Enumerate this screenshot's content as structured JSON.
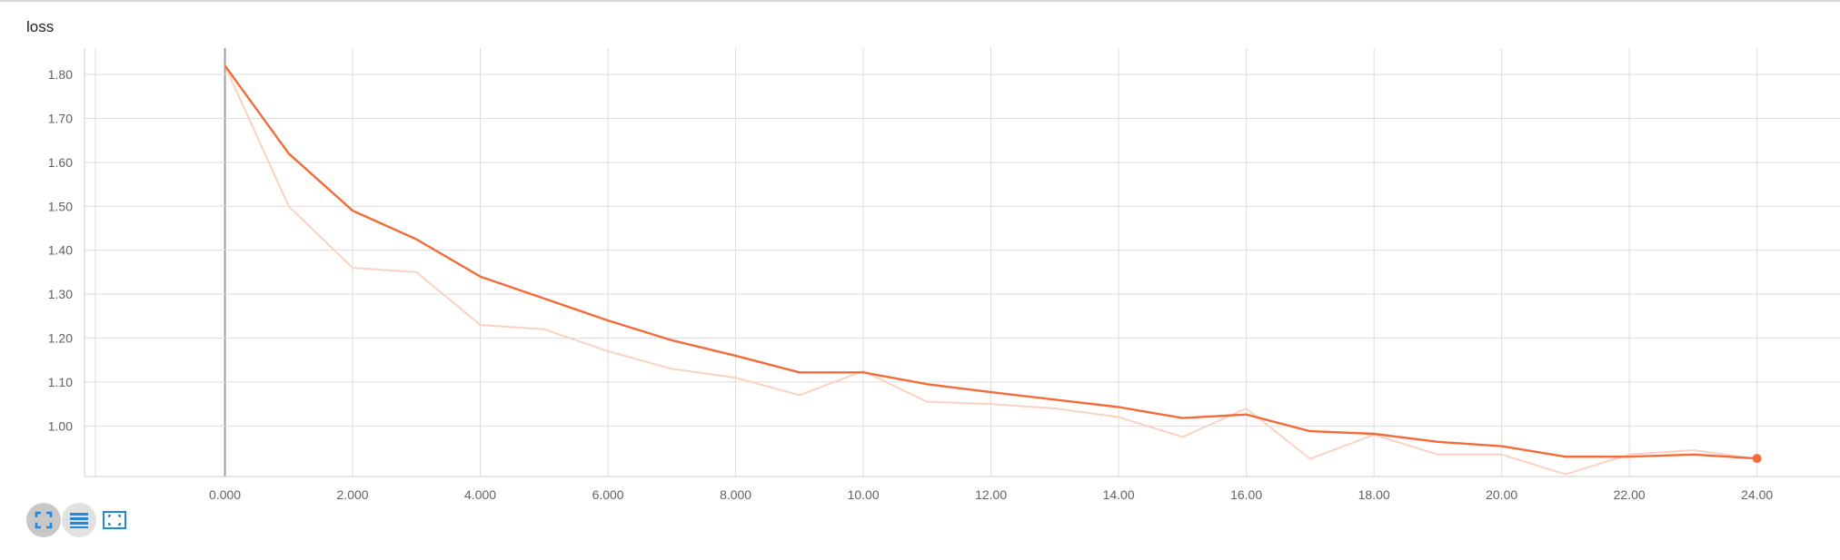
{
  "card": {
    "title": "loss"
  },
  "toolbar": {
    "buttons": [
      {
        "name": "fullscreen",
        "icon": "fullscreen-icon"
      },
      {
        "name": "toggle-y-axis-log",
        "icon": "list-icon"
      },
      {
        "name": "fit-domain",
        "icon": "fit-domain-icon"
      }
    ]
  },
  "colors": {
    "smoothed": "#f26b38",
    "raw": "#f9d2c2",
    "grid": "#dcdcdc",
    "zero_line": "#9e9e9e",
    "axis_text": "#616161",
    "toolbar_icon": "#1e88e5"
  },
  "chart_data": {
    "type": "line",
    "title": "loss",
    "xlabel": "",
    "ylabel": "",
    "x_ticks": [
      "0.000",
      "2.000",
      "4.000",
      "6.000",
      "8.000",
      "10.00",
      "12.00",
      "14.00",
      "16.00",
      "18.00",
      "20.00",
      "22.00",
      "24.00"
    ],
    "y_ticks": [
      "1.00",
      "1.10",
      "1.20",
      "1.30",
      "1.40",
      "1.50",
      "1.60",
      "1.70",
      "1.80"
    ],
    "xlim": [
      -2.2,
      25.3
    ],
    "ylim": [
      0.885,
      1.86
    ],
    "grid": true,
    "legend": "none",
    "series": [
      {
        "role": "raw",
        "x": [
          0,
          1,
          2,
          3,
          4,
          5,
          6,
          7,
          8,
          9,
          10,
          11,
          12,
          13,
          14,
          15,
          16,
          17,
          18,
          19,
          20,
          21,
          22,
          23,
          24
        ],
        "y": [
          1.82,
          1.5,
          1.36,
          1.35,
          1.23,
          1.22,
          1.17,
          1.13,
          1.11,
          1.07,
          1.125,
          1.055,
          1.05,
          1.04,
          1.02,
          0.975,
          1.04,
          0.925,
          0.98,
          0.935,
          0.935,
          0.89,
          0.935,
          0.945,
          0.925
        ]
      },
      {
        "role": "smoothed",
        "x": [
          0,
          1,
          2,
          3,
          4,
          5,
          6,
          7,
          8,
          9,
          10,
          11,
          12,
          13,
          14,
          15,
          16,
          17,
          18,
          19,
          20,
          21,
          22,
          23,
          24
        ],
        "y": [
          1.82,
          1.62,
          1.49,
          1.425,
          1.34,
          1.29,
          1.24,
          1.195,
          1.16,
          1.122,
          1.122,
          1.095,
          1.077,
          1.06,
          1.043,
          1.018,
          1.026,
          0.988,
          0.982,
          0.964,
          0.954,
          0.93,
          0.93,
          0.935,
          0.926
        ]
      }
    ]
  }
}
